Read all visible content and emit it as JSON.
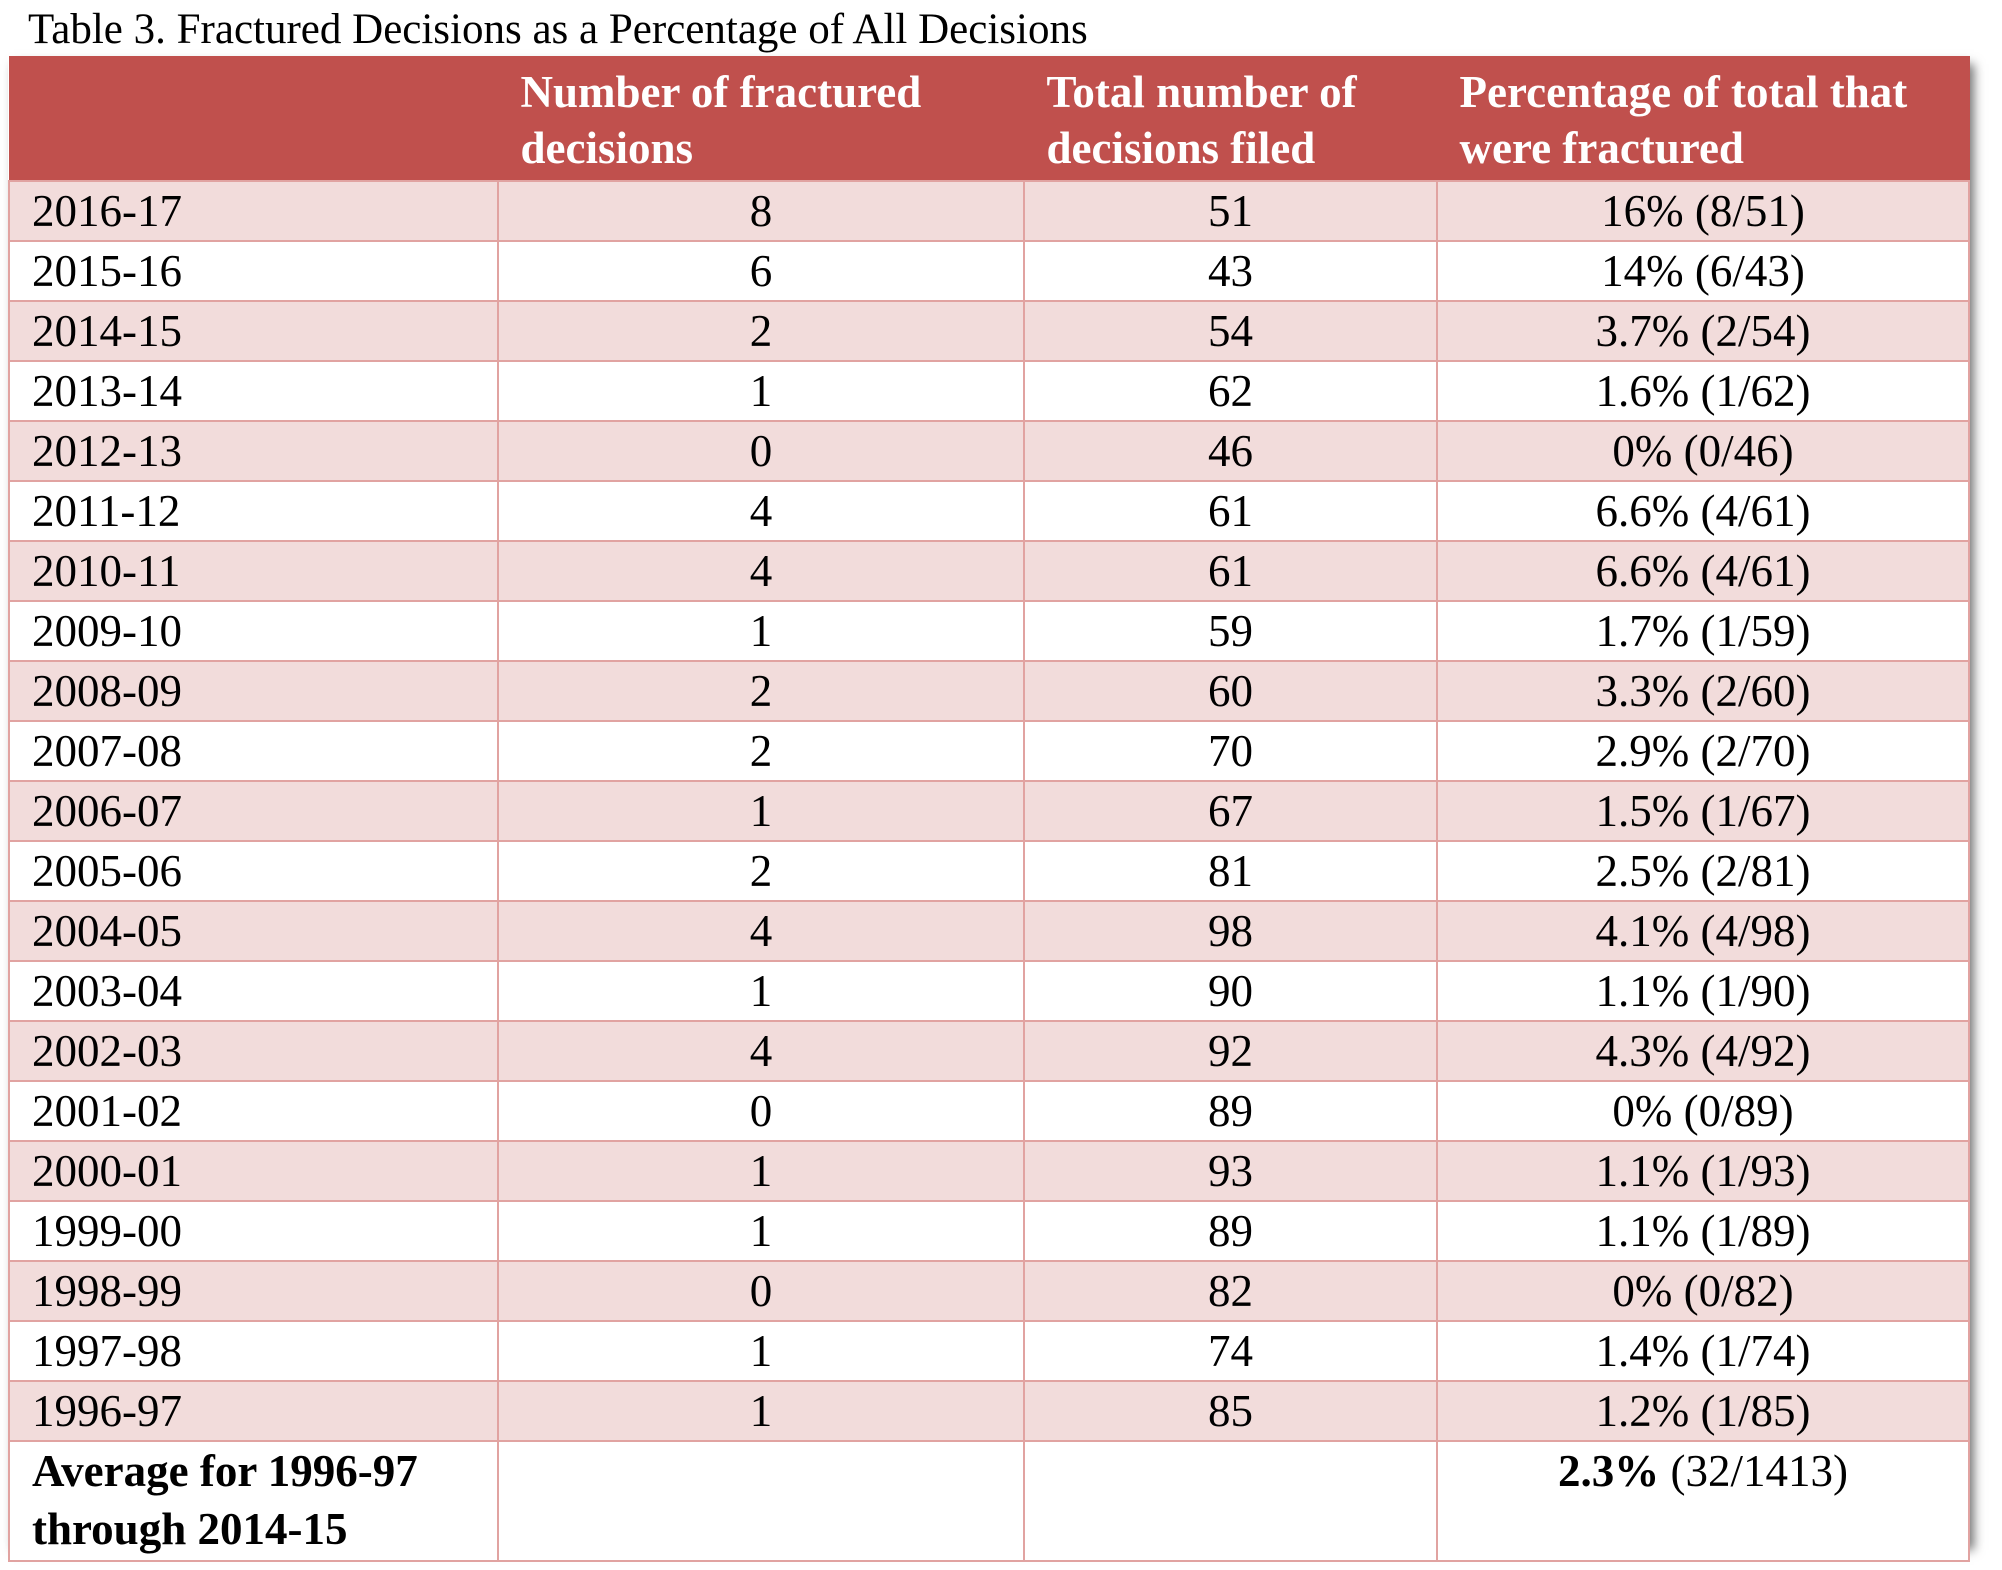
{
  "caption": "Table 3.  Fractured Decisions as a Percentage of All Decisions",
  "headers": [
    "",
    "Number of fractured decisions",
    "Total number of decisions filed",
    "Percentage of total that were fractured"
  ],
  "rows": [
    {
      "year": "2016-17",
      "fractured": "8",
      "total": "51",
      "pct": "16% (8/51)"
    },
    {
      "year": "2015-16",
      "fractured": "6",
      "total": "43",
      "pct": "14% (6/43)"
    },
    {
      "year": "2014-15",
      "fractured": "2",
      "total": "54",
      "pct": "3.7% (2/54)"
    },
    {
      "year": "2013-14",
      "fractured": "1",
      "total": "62",
      "pct": "1.6% (1/62)"
    },
    {
      "year": "2012-13",
      "fractured": "0",
      "total": "46",
      "pct": "0% (0/46)"
    },
    {
      "year": "2011-12",
      "fractured": "4",
      "total": "61",
      "pct": "6.6% (4/61)"
    },
    {
      "year": "2010-11",
      "fractured": "4",
      "total": "61",
      "pct": "6.6% (4/61)"
    },
    {
      "year": "2009-10",
      "fractured": "1",
      "total": "59",
      "pct": "1.7% (1/59)"
    },
    {
      "year": "2008-09",
      "fractured": "2",
      "total": "60",
      "pct": "3.3% (2/60)"
    },
    {
      "year": "2007-08",
      "fractured": "2",
      "total": "70",
      "pct": "2.9% (2/70)"
    },
    {
      "year": "2006-07",
      "fractured": "1",
      "total": "67",
      "pct": "1.5% (1/67)"
    },
    {
      "year": "2005-06",
      "fractured": "2",
      "total": "81",
      "pct": "2.5% (2/81)"
    },
    {
      "year": "2004-05",
      "fractured": "4",
      "total": "98",
      "pct": "4.1% (4/98)"
    },
    {
      "year": "2003-04",
      "fractured": "1",
      "total": "90",
      "pct": "1.1% (1/90)"
    },
    {
      "year": "2002-03",
      "fractured": "4",
      "total": "92",
      "pct": "4.3% (4/92)"
    },
    {
      "year": "2001-02",
      "fractured": "0",
      "total": "89",
      "pct": "0% (0/89)"
    },
    {
      "year": "2000-01",
      "fractured": "1",
      "total": "93",
      "pct": "1.1% (1/93)"
    },
    {
      "year": "1999-00",
      "fractured": "1",
      "total": "89",
      "pct": "1.1% (1/89)"
    },
    {
      "year": "1998-99",
      "fractured": "0",
      "total": "82",
      "pct": "0% (0/82)"
    },
    {
      "year": "1997-98",
      "fractured": "1",
      "total": "74",
      "pct": "1.4% (1/74)"
    },
    {
      "year": "1996-97",
      "fractured": "1",
      "total": "85",
      "pct": "1.2% (1/85)"
    }
  ],
  "average": {
    "label": "Average for 1996-97 through 2014-15",
    "fractured": "",
    "total": "",
    "pct_bold": "2.3%",
    "pct_rest": " (32/1413)"
  },
  "colors": {
    "header_bg": "#c0504d",
    "band_odd": "#f2dcdb",
    "band_even": "#ffffff",
    "grid": "#e1a3a1"
  }
}
